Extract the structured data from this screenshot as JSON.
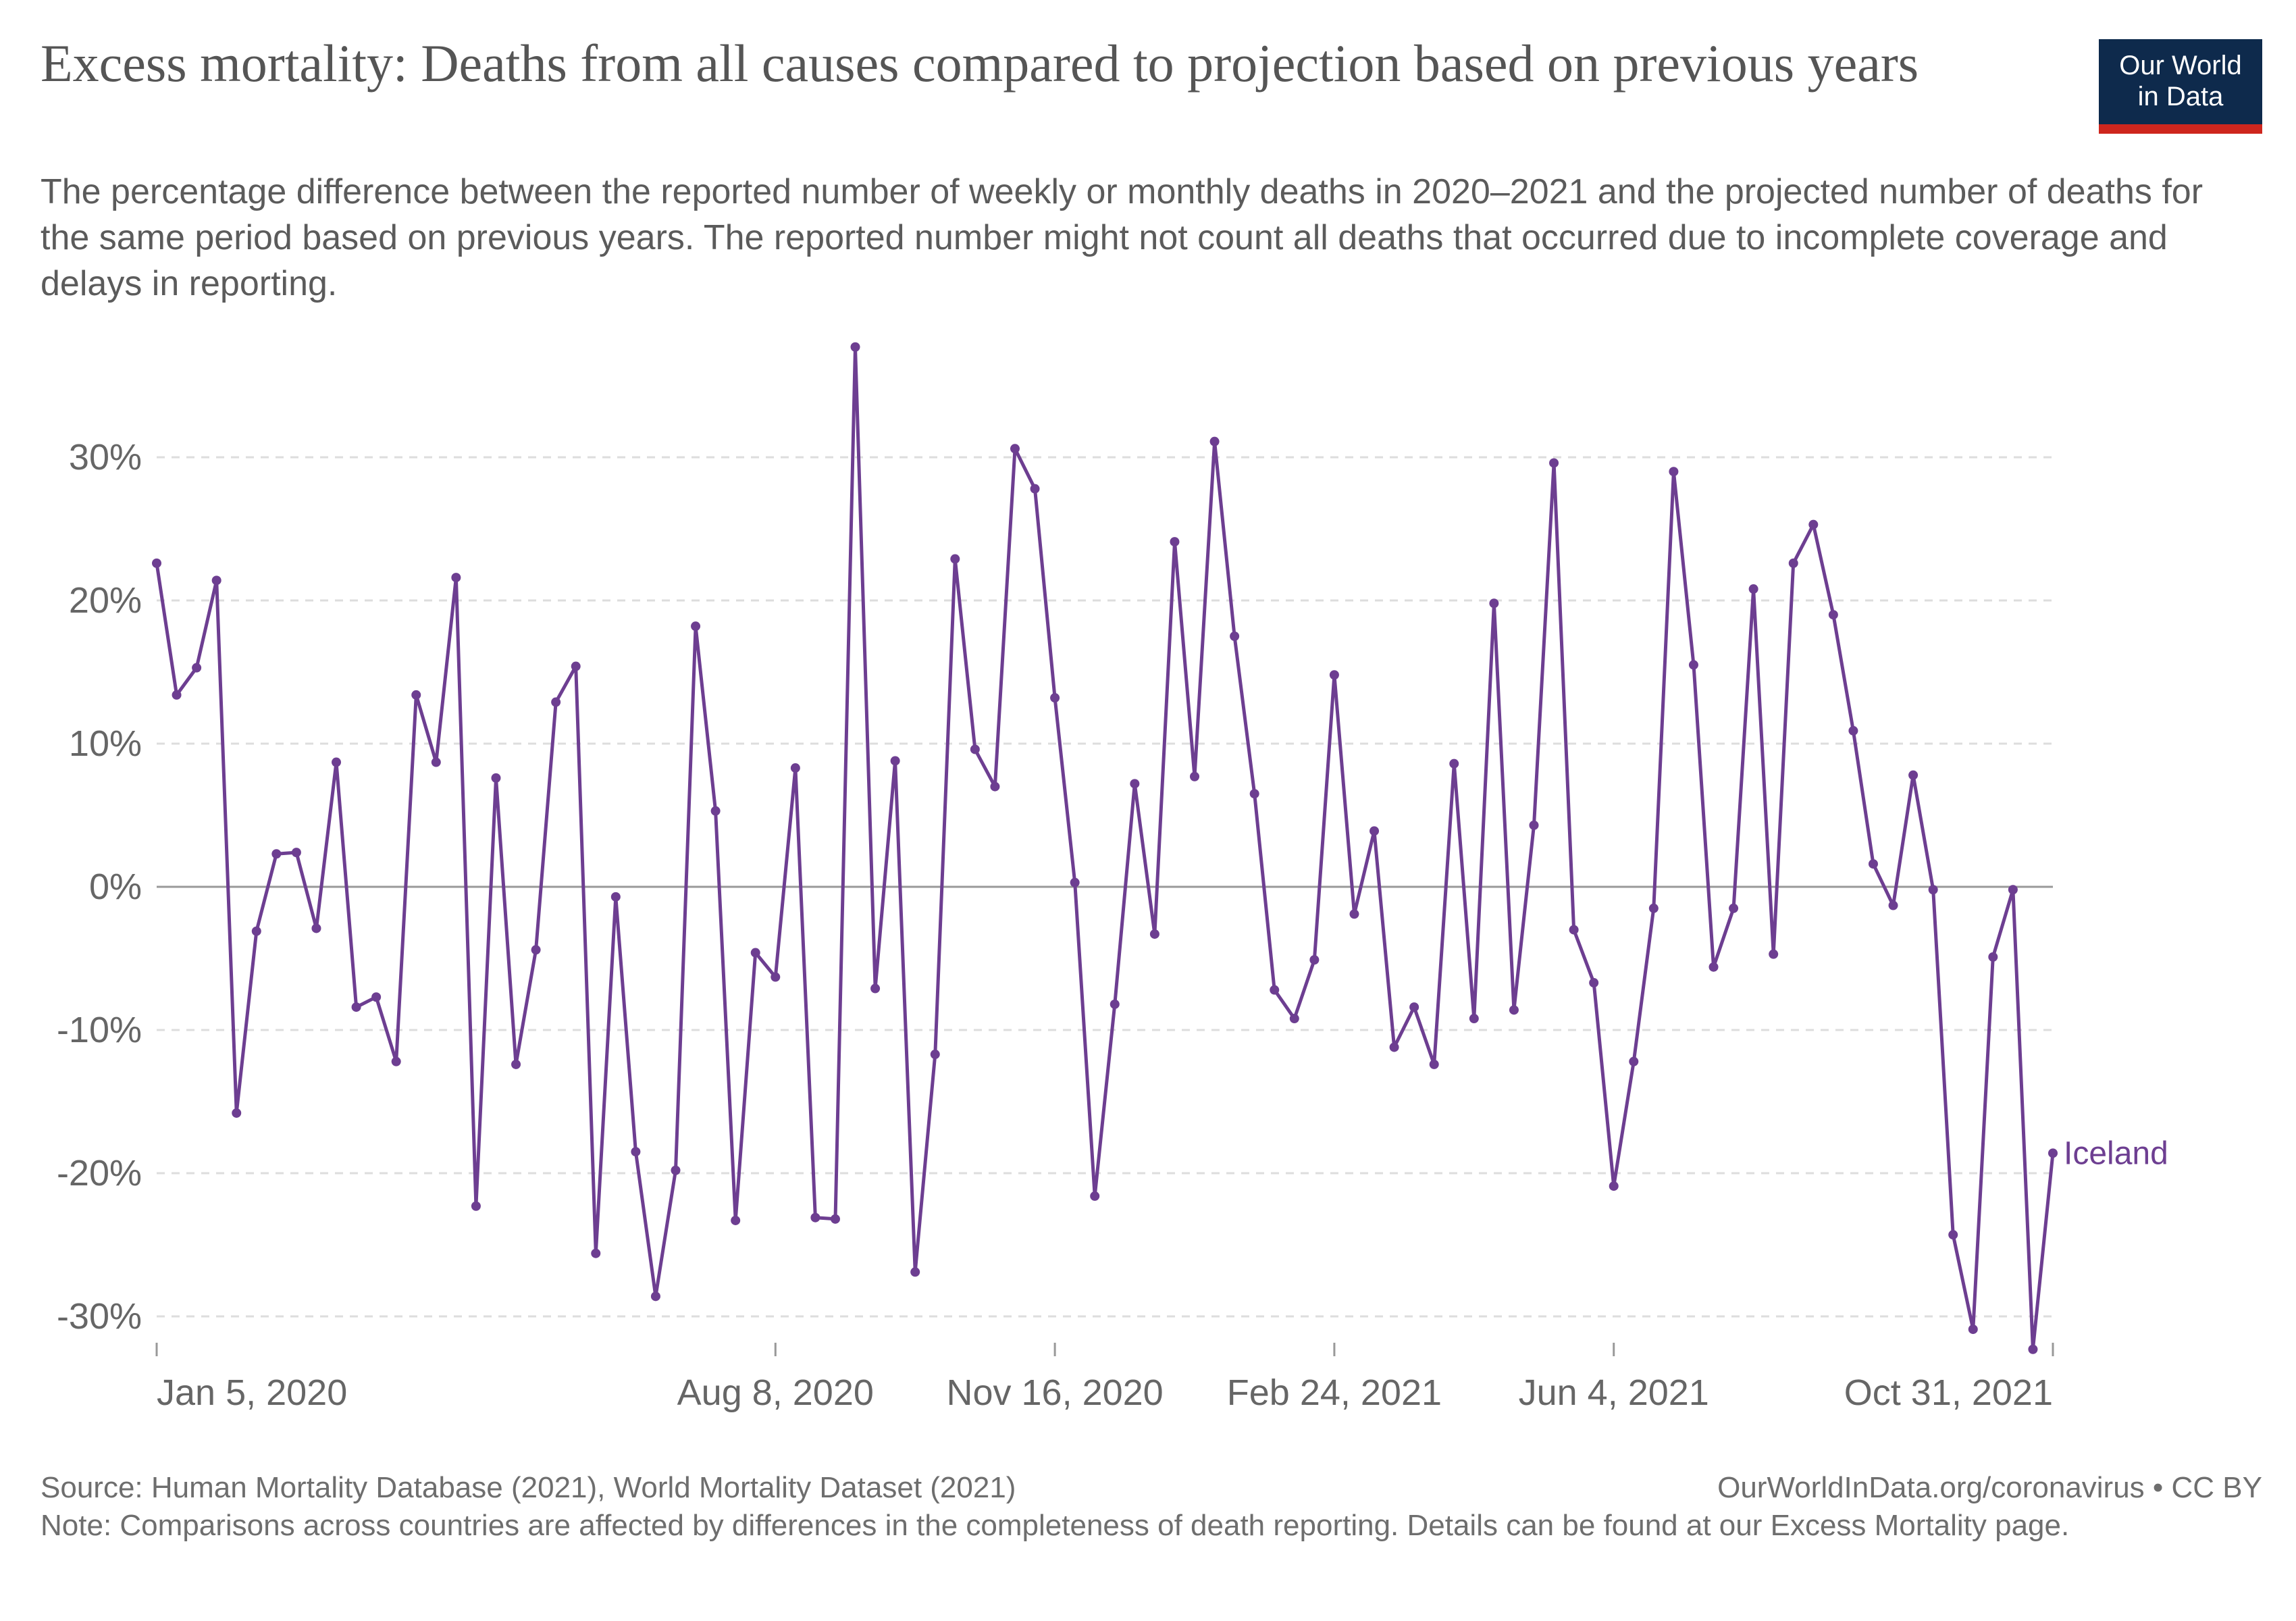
{
  "header": {
    "title": "Excess mortality: Deaths from all causes compared to projection based on previous years",
    "subtitle": "The percentage difference between the reported number of weekly or monthly deaths in 2020–2021 and the projected number of deaths for the same period based on previous years. The reported number might not count all deaths that occurred due to incomplete coverage and delays in reporting.",
    "logo_line1": "Our World",
    "logo_line2": "in Data"
  },
  "footer": {
    "source": "Source: Human Mortality Database (2021), World Mortality Dataset (2021)",
    "credit": "OurWorldInData.org/coronavirus • CC BY",
    "note": "Note: Comparisons across countries are affected by differences in the completeness of death reporting. Details can be found at our Excess Mortality page."
  },
  "colors": {
    "series": "#6d3e91",
    "grid": "#dddddd",
    "zero_line": "#999999",
    "axis_text": "#666666"
  },
  "chart_data": {
    "type": "line",
    "ylim": [
      -32,
      38
    ],
    "y_ticks": [
      -30,
      -20,
      -10,
      0,
      10,
      20,
      30
    ],
    "y_tick_labels": [
      "-30%",
      "-20%",
      "-10%",
      "0%",
      "10%",
      "20%",
      "30%"
    ],
    "x_tick_labels": [
      "Jan 5, 2020",
      "Aug 8, 2020",
      "Nov 16, 2020",
      "Feb 24, 2021",
      "Jun 4, 2021",
      "Oct 31, 2021"
    ],
    "x_tick_weeks": [
      0,
      31,
      45,
      59,
      73,
      95
    ],
    "grid": true,
    "legend": "inline label at end of line",
    "series": [
      {
        "name": "Iceland",
        "week_index_start": 0,
        "values": [
          22.6,
          13.4,
          15.3,
          21.4,
          -15.8,
          -3.1,
          2.3,
          2.4,
          -2.9,
          8.7,
          -8.4,
          -7.7,
          -12.2,
          13.4,
          8.7,
          21.6,
          -22.3,
          7.6,
          -12.4,
          -4.4,
          12.9,
          15.4,
          -25.6,
          -0.7,
          -18.5,
          -28.6,
          -19.8,
          18.2,
          5.3,
          -23.3,
          -4.6,
          -6.3,
          8.3,
          -23.1,
          -23.2,
          37.7,
          -7.1,
          8.8,
          -26.9,
          -11.7,
          22.9,
          9.6,
          7.0,
          30.6,
          27.8,
          13.2,
          0.3,
          -21.6,
          -8.2,
          7.2,
          -3.3,
          24.1,
          7.7,
          31.1,
          17.5,
          6.5,
          -7.2,
          -9.2,
          -5.1,
          14.8,
          -1.9,
          3.9,
          -11.2,
          -8.4,
          -12.4,
          8.6,
          -9.2,
          19.8,
          -8.6,
          4.3,
          29.6,
          -3.0,
          -6.7,
          -20.9,
          -12.2,
          -1.5,
          29.0,
          15.5,
          -5.6,
          -1.5,
          20.8,
          -4.7,
          22.6,
          25.3,
          19.0,
          10.9,
          1.6,
          -1.3,
          7.8,
          -0.2,
          -24.3,
          -30.9,
          -4.9,
          -0.2,
          -32.3,
          -18.6
        ]
      }
    ]
  }
}
